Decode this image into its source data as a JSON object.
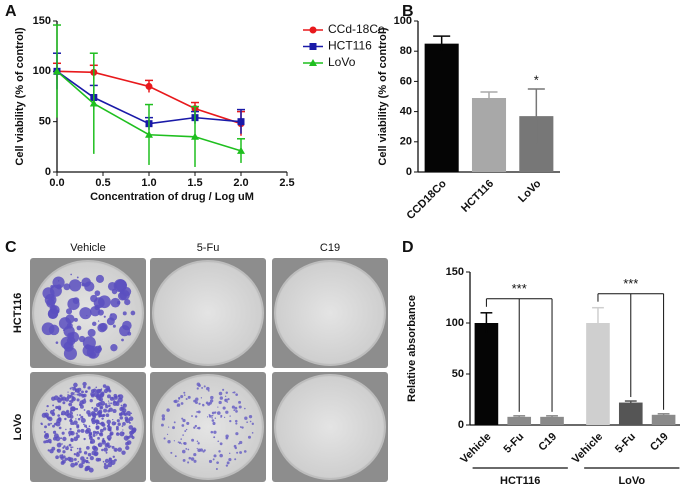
{
  "chart_data": [
    {
      "type": "line",
      "panel_label": "A",
      "xlabel": "Concentration of drug / Log uM",
      "ylabel": "Cell viability (% of control)",
      "xlim": [
        0,
        2.5
      ],
      "xticks": [
        {
          "value": 0,
          "label": "0.0"
        },
        {
          "value": 0.5,
          "label": "0.5"
        },
        {
          "value": 1,
          "label": "1.0"
        },
        {
          "value": 1.5,
          "label": "1.5"
        },
        {
          "value": 2,
          "label": "2.0"
        },
        {
          "value": 2.5,
          "label": "2.5"
        }
      ],
      "ylim": [
        0,
        150
      ],
      "yticks": [
        0,
        50,
        100,
        150
      ],
      "x": [
        0,
        0.4,
        1,
        1.5,
        2
      ],
      "series": [
        {
          "name": "CCd-18Co",
          "color": "#e8191c",
          "marker": "circle",
          "values": [
            100,
            99,
            85,
            63,
            48
          ],
          "errors": [
            8,
            7,
            6,
            6,
            12
          ]
        },
        {
          "name": "HCT116",
          "color": "#1a1aa8",
          "marker": "square",
          "values": [
            100,
            74,
            48,
            54,
            50
          ],
          "errors": [
            18,
            12,
            6,
            6,
            12
          ]
        },
        {
          "name": "LoVo",
          "color": "#1fbf1f",
          "marker": "triangle",
          "values": [
            100,
            68,
            37,
            35,
            21
          ],
          "errors": [
            46,
            50,
            30,
            30,
            12
          ]
        }
      ]
    },
    {
      "type": "bar",
      "panel_label": "B",
      "ylabel": "Cell viability (% of control)",
      "ylim": [
        0,
        100
      ],
      "yticks": [
        0,
        20,
        40,
        60,
        80,
        100
      ],
      "categories": [
        "CCD18Co",
        "HCT116",
        "LoVo"
      ],
      "values": [
        85,
        49,
        37
      ],
      "errors": [
        5,
        4,
        18
      ],
      "colors": [
        "#050505",
        "#a8a8a8",
        "#777777"
      ],
      "annotations": [
        "*"
      ]
    },
    {
      "type": "bar",
      "panel_label": "D",
      "ylabel": "Relative absorbance",
      "ylim": [
        0,
        150
      ],
      "yticks": [
        0,
        50,
        100,
        150
      ],
      "categories": [
        "Vehicle",
        "5-Fu",
        "C19",
        "Vehicle",
        "5-Fu",
        "C19"
      ],
      "values": [
        100,
        8,
        8,
        100,
        22,
        10
      ],
      "errors": [
        10,
        1,
        1,
        15,
        1.5,
        1
      ],
      "colors": [
        "#050505",
        "#8a8a8a",
        "#8a8a8a",
        "#cfcfcf",
        "#555555",
        "#8a8a8a"
      ],
      "groups": [
        "HCT116",
        "LoVo"
      ],
      "annotations": [
        "***",
        "***"
      ]
    }
  ],
  "panel_c": {
    "panel_label": "C",
    "columns": [
      "Vehicle",
      "5-Fu",
      "C19"
    ],
    "rows": [
      "HCT116",
      "LoVo"
    ]
  }
}
